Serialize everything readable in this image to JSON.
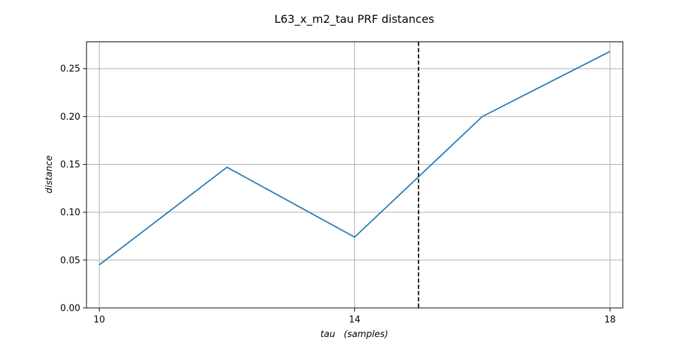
{
  "chart_data": {
    "type": "line",
    "title": "L63_x_m2_tau PRF distances",
    "xlabel": "tau   (samples)",
    "ylabel": "distance",
    "xlim": [
      9.8,
      18.2
    ],
    "ylim": [
      0.0,
      0.278
    ],
    "xticks": [
      10,
      14,
      18
    ],
    "xtick_labels": [
      "10",
      "14",
      "18"
    ],
    "yticks": [
      0.0,
      0.05,
      0.1,
      0.15,
      0.2,
      0.25
    ],
    "ytick_labels": [
      "0.00",
      "0.05",
      "0.10",
      "0.15",
      "0.20",
      "0.25"
    ],
    "grid": true,
    "series": [
      {
        "x": [
          10,
          12,
          14,
          16,
          18
        ],
        "y": [
          0.045,
          0.147,
          0.074,
          0.2,
          0.268
        ],
        "color": "#1f77b4"
      }
    ],
    "vertical_line": {
      "x": 15,
      "style": "dashed",
      "color": "#000000"
    }
  }
}
